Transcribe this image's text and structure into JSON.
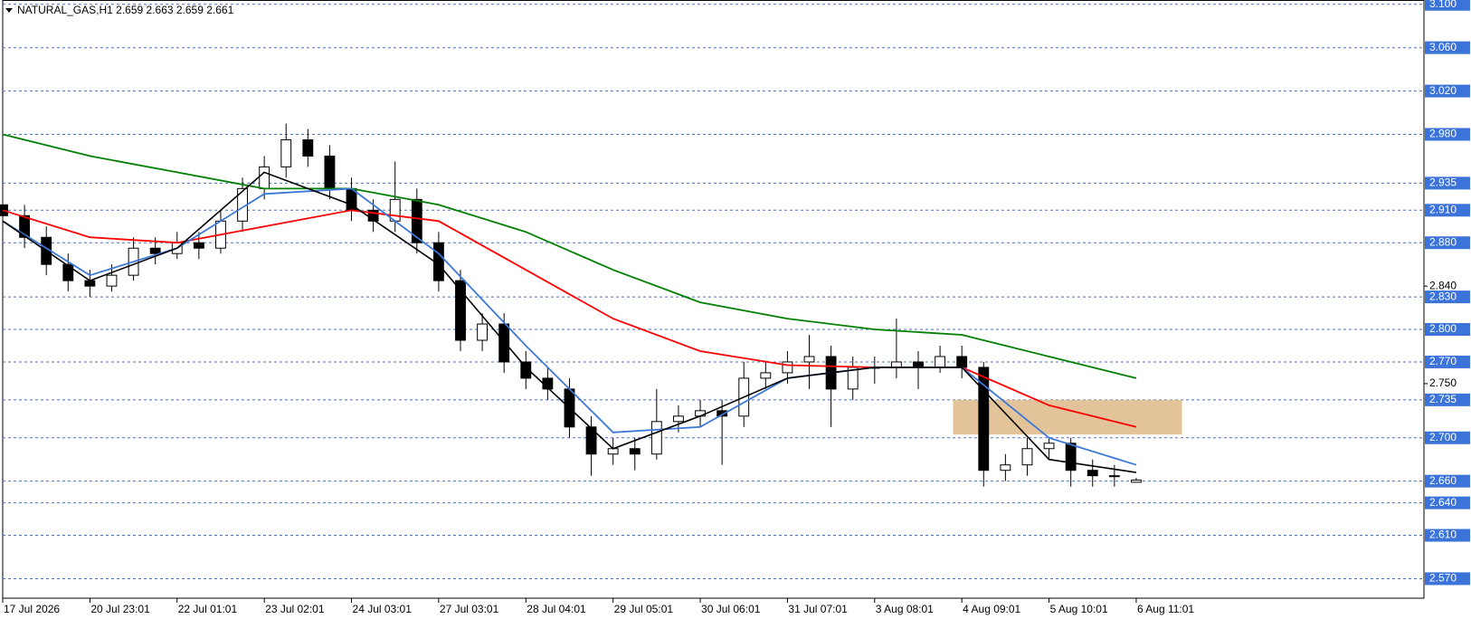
{
  "chart_data": {
    "type": "candlestick",
    "title": "NATURAL_GAS,H1  2.659 2.663 2.659 2.661",
    "xlim": [
      0,
      65.2
    ],
    "ylim": [
      2.552,
      3.104
    ],
    "xticks": [
      {
        "value": 0,
        "label": "17 Jul 2026"
      },
      {
        "value": 4,
        "label": "20 Jul 23:01"
      },
      {
        "value": 8,
        "label": "22 Jul 01:01"
      },
      {
        "value": 12,
        "label": "23 Jul 02:01"
      },
      {
        "value": 16,
        "label": "24 Jul 03:01"
      },
      {
        "value": 20,
        "label": "27 Jul 03:01"
      },
      {
        "value": 24,
        "label": "28 Jul 04:01"
      },
      {
        "value": 28,
        "label": "29 Jul 05:01"
      },
      {
        "value": 32,
        "label": "30 Jul 06:01"
      },
      {
        "value": 36,
        "label": "31 Jul 07:01"
      },
      {
        "value": 40,
        "label": "3 Aug 08:01"
      },
      {
        "value": 44,
        "label": "4 Aug 09:01"
      },
      {
        "value": 48,
        "label": "5 Aug 10:01"
      },
      {
        "value": 52,
        "label": "6 Aug 11:01"
      }
    ],
    "yticks": [
      {
        "value": 2.84,
        "label": "2.840"
      },
      {
        "value": 2.75,
        "label": "2.750"
      }
    ],
    "levels": [
      {
        "value": 3.1,
        "label": "3.100"
      },
      {
        "value": 3.06,
        "label": "3.060"
      },
      {
        "value": 3.02,
        "label": "3.020"
      },
      {
        "value": 2.98,
        "label": "2.980"
      },
      {
        "value": 2.935,
        "label": "2.935"
      },
      {
        "value": 2.91,
        "label": "2.910"
      },
      {
        "value": 2.88,
        "label": "2.880"
      },
      {
        "value": 2.83,
        "label": "2.830"
      },
      {
        "value": 2.8,
        "label": "2.800"
      },
      {
        "value": 2.77,
        "label": "2.770"
      },
      {
        "value": 2.735,
        "label": "2.735"
      },
      {
        "value": 2.7,
        "label": "2.700"
      },
      {
        "value": 2.66,
        "label": "2.660"
      },
      {
        "value": 2.64,
        "label": "2.640"
      },
      {
        "value": 2.61,
        "label": "2.610"
      },
      {
        "value": 2.57,
        "label": "2.570"
      }
    ],
    "level_color": "#3b73d9",
    "zone": {
      "x": [
        43.6,
        54.1
      ],
      "y": [
        2.703,
        2.735
      ],
      "color": "#deb887"
    },
    "open": [
      2.915,
      2.905,
      2.885,
      2.86,
      2.845,
      2.84,
      2.85,
      2.875,
      2.87,
      2.88,
      2.875,
      2.9,
      2.93,
      2.95,
      2.975,
      2.96,
      2.93,
      2.91,
      2.9,
      2.92,
      2.88,
      2.845,
      2.79,
      2.805,
      2.77,
      2.755,
      2.745,
      2.71,
      2.685,
      2.69,
      2.685,
      2.715,
      2.72,
      2.725,
      2.72,
      2.755,
      2.76,
      2.77,
      2.775,
      2.745,
      2.765,
      2.765,
      2.77,
      2.765,
      2.775,
      2.765,
      2.67,
      2.675,
      2.69,
      2.695,
      2.67,
      2.665,
      2.659
    ],
    "high": [
      2.925,
      2.915,
      2.895,
      2.87,
      2.855,
      2.86,
      2.885,
      2.885,
      2.89,
      2.89,
      2.91,
      2.94,
      2.96,
      2.99,
      2.985,
      2.97,
      2.94,
      2.92,
      2.955,
      2.93,
      2.89,
      2.855,
      2.815,
      2.815,
      2.78,
      2.765,
      2.755,
      2.72,
      2.7,
      2.7,
      2.745,
      2.73,
      2.735,
      2.735,
      2.77,
      2.77,
      2.78,
      2.795,
      2.785,
      2.775,
      2.775,
      2.81,
      2.78,
      2.785,
      2.785,
      2.77,
      2.685,
      2.7,
      2.7,
      2.7,
      2.68,
      2.675,
      2.663
    ],
    "low": [
      2.895,
      2.875,
      2.85,
      2.835,
      2.83,
      2.835,
      2.845,
      2.86,
      2.865,
      2.865,
      2.87,
      2.89,
      2.92,
      2.94,
      2.95,
      2.92,
      2.9,
      2.89,
      2.89,
      2.87,
      2.835,
      2.78,
      2.78,
      2.76,
      2.745,
      2.735,
      2.7,
      2.665,
      2.675,
      2.67,
      2.68,
      2.705,
      2.71,
      2.675,
      2.71,
      2.745,
      2.75,
      2.745,
      2.71,
      2.735,
      2.75,
      2.755,
      2.745,
      2.76,
      2.755,
      2.655,
      2.66,
      2.665,
      2.68,
      2.655,
      2.655,
      2.655,
      2.659
    ],
    "close": [
      2.905,
      2.885,
      2.86,
      2.845,
      2.84,
      2.85,
      2.875,
      2.87,
      2.88,
      2.875,
      2.9,
      2.93,
      2.95,
      2.975,
      2.96,
      2.93,
      2.91,
      2.9,
      2.92,
      2.88,
      2.845,
      2.79,
      2.805,
      2.77,
      2.755,
      2.745,
      2.71,
      2.685,
      2.69,
      2.685,
      2.715,
      2.72,
      2.725,
      2.72,
      2.755,
      2.76,
      2.77,
      2.775,
      2.745,
      2.765,
      2.765,
      2.77,
      2.765,
      2.775,
      2.765,
      2.67,
      2.675,
      2.69,
      2.695,
      2.67,
      2.665,
      2.665,
      2.661
    ],
    "series": [
      {
        "color": "#008000",
        "x": [
          0,
          4,
          8,
          12,
          16,
          20,
          24,
          28,
          32,
          36,
          40,
          44,
          48,
          52
        ],
        "values": [
          2.98,
          2.96,
          2.945,
          2.93,
          2.93,
          2.915,
          2.89,
          2.855,
          2.825,
          2.81,
          2.8,
          2.795,
          2.775,
          2.755
        ]
      },
      {
        "color": "#ff0000",
        "x": [
          0,
          4,
          8,
          12,
          16,
          20,
          24,
          28,
          32,
          36,
          40,
          44,
          48,
          52
        ],
        "values": [
          2.91,
          2.885,
          2.88,
          2.895,
          2.91,
          2.9,
          2.855,
          2.81,
          2.78,
          2.767,
          2.765,
          2.765,
          2.73,
          2.71
        ]
      },
      {
        "color": "#3c78d8",
        "x": [
          0,
          4,
          8,
          12,
          16,
          20,
          24,
          28,
          32,
          36,
          40,
          44,
          48,
          52
        ],
        "values": [
          2.9,
          2.85,
          2.875,
          2.925,
          2.93,
          2.87,
          2.785,
          2.705,
          2.71,
          2.755,
          2.765,
          2.765,
          2.7,
          2.675
        ]
      },
      {
        "color": "#000000",
        "x": [
          0,
          4,
          8,
          12,
          16,
          20,
          24,
          28,
          32,
          36,
          40,
          44,
          48,
          52
        ],
        "values": [
          2.9,
          2.845,
          2.875,
          2.945,
          2.915,
          2.86,
          2.765,
          2.69,
          2.72,
          2.755,
          2.765,
          2.765,
          2.68,
          2.668
        ]
      }
    ]
  }
}
